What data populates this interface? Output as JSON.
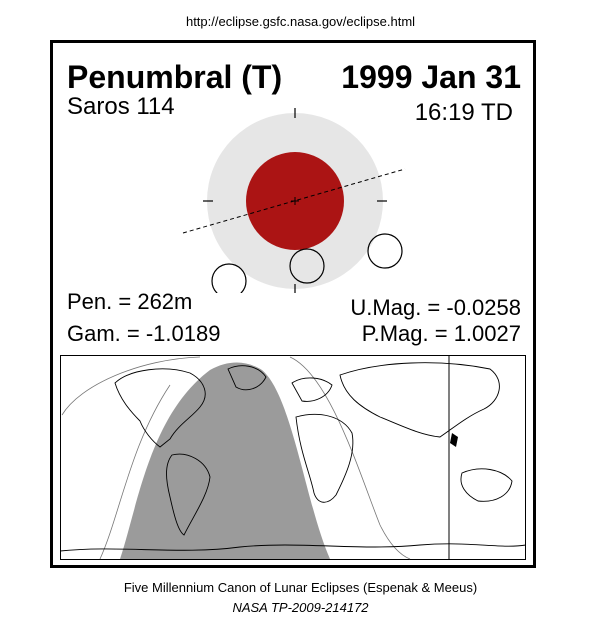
{
  "source_url": "http://eclipse.gsfc.nasa.gov/eclipse.html",
  "eclipse": {
    "type_label": "Penumbral (T)",
    "date": "1999 Jan 31",
    "saros": "Saros 114",
    "time": "16:19 TD"
  },
  "parameters": {
    "penumbral_duration": "Pen. = 262m",
    "gamma": "Gam. = -1.0189",
    "umbral_magnitude": "U.Mag. = -0.0258",
    "penumbral_magnitude": "P.Mag. = 1.0027"
  },
  "colors": {
    "penumbra": "#e6e6e6",
    "umbra": "#ab1414",
    "visibility_shade": "#9b9b9b",
    "frame": "#000000"
  },
  "footer": {
    "line1": "Five Millennium Canon of Lunar Eclipses (Espenak & Meeus)",
    "line2": "NASA TP-2009-214172"
  }
}
